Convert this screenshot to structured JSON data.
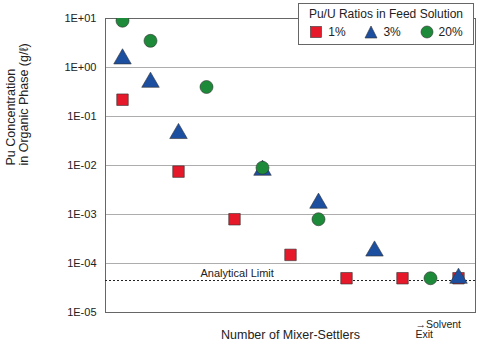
{
  "chart_data": {
    "type": "scatter",
    "x_label": "Number of Mixer-Settlers",
    "y_label": "Pu Concentration\nin Organic Phase (g/ℓ)",
    "categories": [
      null,
      null,
      null,
      null,
      null,
      null,
      null,
      null,
      null,
      null,
      null,
      null,
      null
    ],
    "series": [
      {
        "name": "1%",
        "color": "#e5192a",
        "marker": "square",
        "values": [
          0.22,
          null,
          0.0075,
          null,
          0.0008,
          null,
          0.00015,
          null,
          5e-05,
          null,
          5e-05,
          null,
          5e-05
        ]
      },
      {
        "name": "3%",
        "color": "#1c4fa0",
        "marker": "triangle",
        "values": [
          1.5,
          0.5,
          0.045,
          null,
          null,
          0.008,
          null,
          0.0017,
          null,
          0.00018,
          null,
          null,
          5e-05
        ]
      },
      {
        "name": "20%",
        "color": "#1d8a3a",
        "marker": "circle",
        "values": [
          9,
          3.5,
          null,
          0.4,
          null,
          0.009,
          null,
          0.0008,
          null,
          null,
          null,
          5e-05,
          null
        ]
      }
    ],
    "ylim": [
      1e-05,
      10
    ],
    "yticks": [
      {
        "value": 10,
        "label": "1E+01"
      },
      {
        "value": 1,
        "label": "1E+00"
      },
      {
        "value": 0.1,
        "label": "1E-01"
      },
      {
        "value": 0.01,
        "label": "1E-02"
      },
      {
        "value": 0.001,
        "label": "1E-03"
      },
      {
        "value": 0.0001,
        "label": "1E-04"
      },
      {
        "value": 1e-05,
        "label": "1E-05"
      }
    ],
    "log": "y",
    "grid": true,
    "legend": "top-right",
    "legend_title": "Pu/U Ratios in Feed Solution",
    "annotations": [
      {
        "text": "Analytical Limit",
        "y": 4.5e-05
      },
      {
        "text": "→Solvent\nExit"
      }
    ]
  }
}
